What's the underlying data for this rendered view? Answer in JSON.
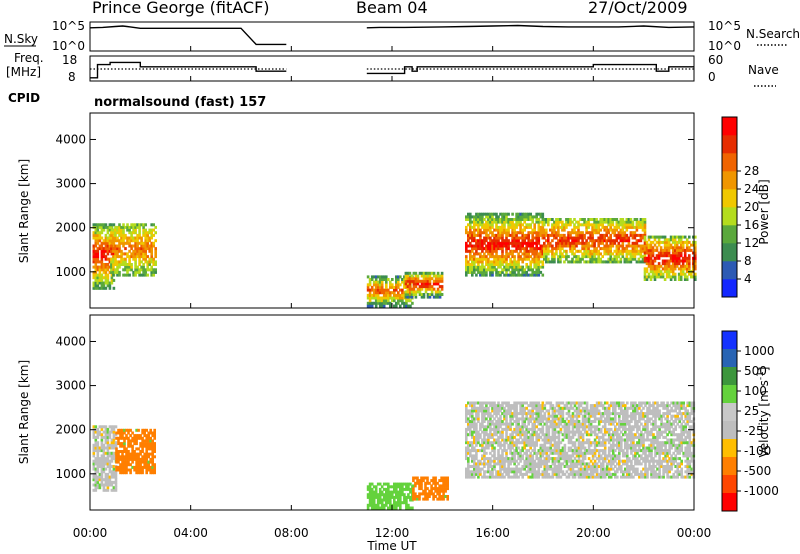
{
  "header": {
    "station": "Prince George (fitACF)",
    "beam": "Beam 04",
    "date": "27/Oct/2009"
  },
  "params": {
    "nsky_label": "N.Sky",
    "nsky_ticks": [
      "10^5",
      "10^0"
    ],
    "nsearch_label": "N.Search",
    "nsearch_ticks": [
      "10^5",
      "10^0"
    ],
    "freq_label_line1": "Freq.",
    "freq_label_line2": "[MHz]",
    "freq_ticks": [
      "18",
      "8"
    ],
    "nave_label": "Nave",
    "nave_ticks": [
      "60",
      "0"
    ],
    "cpid_label": "CPID",
    "cpid_value": "normalsound (fast) 157"
  },
  "colors": {
    "power_scale": [
      "#1428ff",
      "#2c5ab4",
      "#3c8c50",
      "#5aa83c",
      "#b4dc1e",
      "#f0c800",
      "#f09600",
      "#f06400",
      "#e62d00",
      "#ff0000"
    ],
    "velocity_scale": [
      "#ff0000",
      "#ff4600",
      "#ff7f00",
      "#ffbe00",
      "#bebebe",
      "#c8c8c8",
      "#64d23c",
      "#3c963c",
      "#2864b4",
      "#1432ff"
    ]
  },
  "chart_data": [
    {
      "type": "line",
      "name": "N.Sky / N.Search",
      "x_unit": "hours UT",
      "x": [
        0,
        0.5,
        1.0,
        1.3,
        1.6,
        2.0,
        2.5,
        3.0,
        4.0,
        5.0,
        6.0,
        6.6,
        7.8,
        11.0,
        11.5,
        12.5,
        14.0,
        15.0,
        16.0,
        17.0,
        18.0,
        19.0,
        20.0,
        21.0,
        22.0,
        23.0,
        24.0
      ],
      "nsky_log": [
        4.6,
        4.7,
        4.9,
        5.0,
        4.8,
        4.5,
        4.5,
        4.5,
        4.5,
        4.5,
        4.5,
        1.0,
        1.0,
        4.6,
        4.7,
        4.7,
        4.8,
        4.9,
        5.0,
        5.1,
        4.9,
        4.8,
        4.8,
        4.8,
        5.0,
        4.7,
        4.8
      ],
      "ylim_log": [
        0,
        5
      ]
    },
    {
      "type": "line",
      "name": "Freq / Nave",
      "x_unit": "hours UT",
      "steps": [
        [
          0,
          0.3,
          9
        ],
        [
          0.3,
          0.8,
          15
        ],
        [
          0.8,
          2.0,
          16
        ],
        [
          2.0,
          3.0,
          14
        ],
        [
          3.0,
          6.6,
          14
        ],
        [
          6.6,
          7.8,
          12
        ],
        [
          11.0,
          12.5,
          11
        ],
        [
          12.5,
          12.8,
          14
        ],
        [
          12.8,
          13.0,
          12
        ],
        [
          13.0,
          18.5,
          14
        ],
        [
          18.5,
          20.0,
          14
        ],
        [
          20.0,
          22.5,
          15
        ],
        [
          22.5,
          23.0,
          12
        ],
        [
          23.0,
          24.0,
          14
        ]
      ],
      "nave_level": 30,
      "freq_ylim": [
        8,
        18
      ],
      "nave_ylim": [
        0,
        60
      ]
    },
    {
      "type": "heatmap",
      "title": "Power",
      "xlabel": "",
      "ylabel": "Slant Range [km]",
      "x_ticks": [
        "00:00",
        "04:00",
        "08:00",
        "12:00",
        "16:00",
        "20:00",
        "00:00"
      ],
      "y_ticks": [
        "1000",
        "2000",
        "3000",
        "4000"
      ],
      "xlim": [
        0,
        24
      ],
      "ylim": [
        180,
        4600
      ],
      "colorbar": {
        "label": "Power [dB]",
        "ticks": [
          "4",
          "8",
          "12",
          "16",
          "20",
          "24",
          "28"
        ],
        "range": [
          0,
          30
        ]
      },
      "regions": [
        {
          "t": [
            0.1,
            0.9
          ],
          "r": [
            600,
            2100
          ],
          "core": 28,
          "edge": 8
        },
        {
          "t": [
            0.8,
            2.6
          ],
          "r": [
            900,
            2100
          ],
          "core": 22,
          "edge": 10
        },
        {
          "t": [
            11.0,
            12.8
          ],
          "r": [
            200,
            900
          ],
          "core": 24,
          "edge": 6
        },
        {
          "t": [
            12.5,
            14.0
          ],
          "r": [
            400,
            1000
          ],
          "core": 28,
          "edge": 6
        },
        {
          "t": [
            14.9,
            18.0
          ],
          "r": [
            900,
            2300
          ],
          "core": 28,
          "edge": 8
        },
        {
          "t": [
            18.0,
            22.0
          ],
          "r": [
            1200,
            2200
          ],
          "core": 26,
          "edge": 10
        },
        {
          "t": [
            22.0,
            24.0
          ],
          "r": [
            800,
            1800
          ],
          "core": 28,
          "edge": 10
        }
      ]
    },
    {
      "type": "heatmap",
      "title": "Velocity",
      "xlabel": "Time UT",
      "ylabel": "Slant Range [km]",
      "x_ticks": [
        "00:00",
        "04:00",
        "08:00",
        "12:00",
        "16:00",
        "20:00",
        "00:00"
      ],
      "y_ticks": [
        "1000",
        "2000",
        "3000",
        "4000"
      ],
      "xlim": [
        0,
        24
      ],
      "ylim": [
        180,
        4600
      ],
      "colorbar": {
        "label": "Velocity [m s^-1]",
        "ticks": [
          "1000",
          "500",
          "100",
          "25",
          "-25",
          "-100",
          "-500",
          "-1000"
        ],
        "range": [
          -1000,
          1000
        ]
      },
      "regions": [
        {
          "t": [
            0.1,
            1.0
          ],
          "r": [
            600,
            2100
          ],
          "v": 0
        },
        {
          "t": [
            1.0,
            2.6
          ],
          "r": [
            1000,
            2000
          ],
          "v": -150
        },
        {
          "t": [
            11.0,
            12.8
          ],
          "r": [
            200,
            800
          ],
          "v": 60
        },
        {
          "t": [
            12.8,
            14.2
          ],
          "r": [
            400,
            900
          ],
          "v": -200
        },
        {
          "t": [
            14.9,
            24.0
          ],
          "r": [
            900,
            2600
          ],
          "v": 0
        }
      ]
    }
  ]
}
